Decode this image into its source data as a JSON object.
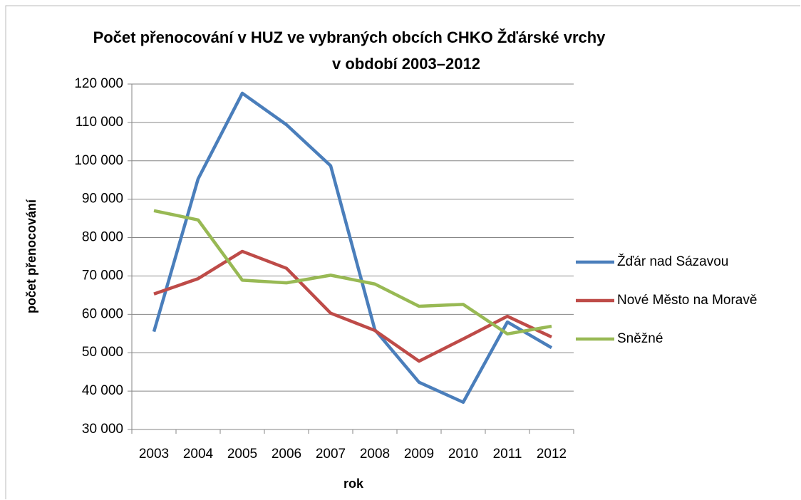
{
  "chart_data": {
    "type": "line",
    "title": [
      "Počet přenocování v HUZ ve vybraných obcích CHKO Žďárské vrchy",
      "v období 2003–2012"
    ],
    "x_label": "rok",
    "y_label": "počet přenocování",
    "categories": [
      "2003",
      "2004",
      "2005",
      "2006",
      "2007",
      "2008",
      "2009",
      "2010",
      "2011",
      "2012"
    ],
    "series": [
      {
        "name": "Žďár nad Sázavou",
        "color": "#4a7ebb",
        "values": [
          55500,
          95300,
          117600,
          109400,
          98700,
          56000,
          42300,
          37100,
          58000,
          51300
        ]
      },
      {
        "name": "Nové Město na Moravě",
        "color": "#be4b48",
        "values": [
          65300,
          69300,
          76400,
          72000,
          60300,
          55800,
          47800,
          53600,
          59500,
          54100
        ]
      },
      {
        "name": "Sněžné",
        "color": "#98b954",
        "values": [
          87000,
          84600,
          68900,
          68200,
          70200,
          67900,
          62100,
          62600,
          54900,
          56900
        ]
      }
    ],
    "ylim": [
      30000,
      120000
    ],
    "yticks": [
      {
        "value": 30000,
        "label": "30 000"
      },
      {
        "value": 40000,
        "label": "40 000"
      },
      {
        "value": 50000,
        "label": "50 000"
      },
      {
        "value": 60000,
        "label": "60 000"
      },
      {
        "value": 70000,
        "label": "70 000"
      },
      {
        "value": 80000,
        "label": "80 000"
      },
      {
        "value": 90000,
        "label": "90 000"
      },
      {
        "value": 100000,
        "label": "100 000"
      },
      {
        "value": 110000,
        "label": "110 000"
      },
      {
        "value": 120000,
        "label": "120 000"
      }
    ],
    "grid": true,
    "legend": "right"
  }
}
